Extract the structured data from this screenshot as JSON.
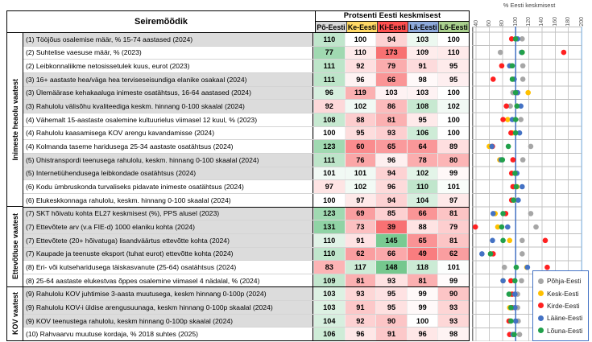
{
  "table": {
    "header": {
      "indicator_col": "Seiremõõdik",
      "values_title": "Protsenti Eesti keskmisest",
      "regions": [
        {
          "label": "Põ-Eesti",
          "bg": "#D9D9D9"
        },
        {
          "label": "Ke-Eesti",
          "bg": "#FFD966"
        },
        {
          "label": "Ki-Eesti",
          "bg": "#FF5050"
        },
        {
          "label": "Lä-Eesti",
          "bg": "#8EAADB"
        },
        {
          "label": "Lõ-Eesti",
          "bg": "#A9D08E"
        }
      ]
    },
    "groups": [
      {
        "label": "Inimeste heaolu vaatest",
        "row_count": 13
      },
      {
        "label": "Ettevõtluse vaatest",
        "row_count": 6
      },
      {
        "label": "KOV vaatest",
        "row_count": 4
      }
    ],
    "rows": [
      {
        "label": "(1) Tööjõus osalemise määr, % 15-74 aastased (2024)",
        "values": [
          110,
          100,
          94,
          103,
          100
        ],
        "shaded": true,
        "lower_is_better": false
      },
      {
        "label": "(2) Suhtelise vaesuse määr, % (2023)",
        "values": [
          77,
          110,
          173,
          109,
          110
        ],
        "shaded": false,
        "lower_is_better": true
      },
      {
        "label": "(2) Leibkonnaliikme netosissetulek kuus, eurot (2023)",
        "values": [
          111,
          92,
          79,
          91,
          95
        ],
        "shaded": false,
        "lower_is_better": false
      },
      {
        "label": "(3) 16+ aastaste hea/väga hea terviseseisundiga elanike osakaal (2024)",
        "values": [
          111,
          96,
          66,
          98,
          95
        ],
        "shaded": true,
        "lower_is_better": false
      },
      {
        "label": "(3) Ülemäärase kehakaaluga inimeste osatähtsus, 16-64 aastased (2024)",
        "values": [
          96,
          119,
          103,
          103,
          100
        ],
        "shaded": true,
        "lower_is_better": true
      },
      {
        "label": "(3) Rahulolu välisõhu kvaliteediga keskm. hinnang 0-100 skaalal (2024)",
        "values": [
          92,
          102,
          86,
          108,
          102
        ],
        "shaded": true,
        "lower_is_better": false
      },
      {
        "label": "(4) Vähemalt 15-aastaste osalemine kultuurielus viimasel 12 kuul, % (2023)",
        "values": [
          108,
          88,
          81,
          95,
          100
        ],
        "shaded": false,
        "lower_is_better": false
      },
      {
        "label": "(4) Rahulolu kaasamisega KOV arengu kavandamisse (2024)",
        "values": [
          100,
          95,
          93,
          106,
          100
        ],
        "shaded": false,
        "lower_is_better": false
      },
      {
        "label": "(4) Kolmanda taseme haridusega 25-34 aastaste osatähtsus (2024)",
        "values": [
          123,
          60,
          65,
          64,
          89
        ],
        "shaded": false,
        "lower_is_better": false
      },
      {
        "label": "(5) Ühistranspordi teenusega rahulolu, keskm. hinnang 0-100 skaalal (2024)",
        "values": [
          111,
          76,
          96,
          78,
          80
        ],
        "shaded": true,
        "lower_is_better": false
      },
      {
        "label": "(5) Internetiühendusega leibkondade osatähtsus (2024)",
        "values": [
          101,
          101,
          94,
          102,
          99
        ],
        "shaded": true,
        "lower_is_better": false
      },
      {
        "label": "(6) Kodu ümbruskonda turvaliseks pidavate inimeste osatähtsus (2024)",
        "values": [
          97,
          102,
          96,
          110,
          101
        ],
        "shaded": false,
        "lower_is_better": false
      },
      {
        "label": "(6) Elukeskkonnaga rahulolu, keskm. hinnang 0-100 skaalal (2024)",
        "values": [
          100,
          97,
          94,
          104,
          97
        ],
        "shaded": false,
        "lower_is_better": false
      },
      {
        "label": "(7) SKT hõivatu kohta EL27 keskmisest (%), PPS alusel (2023)",
        "values": [
          123,
          69,
          85,
          66,
          81
        ],
        "shaded": true,
        "lower_is_better": false
      },
      {
        "label": "(7) Ettevõtete arv (v.a FIE-d) 1000 elaniku kohta (2024)",
        "values": [
          131,
          73,
          39,
          88,
          79
        ],
        "shaded": true,
        "lower_is_better": false
      },
      {
        "label": "(7) Ettevõtete (20+ hõivatuga) lisandväärtus ettevõtte kohta (2024)",
        "values": [
          110,
          91,
          145,
          65,
          81
        ],
        "shaded": true,
        "lower_is_better": false
      },
      {
        "label": "(7) Kaupade ja teenuste eksport (tuhat eurot) ettevõtte kohta (2024)",
        "values": [
          110,
          62,
          66,
          49,
          62
        ],
        "shaded": true,
        "lower_is_better": false
      },
      {
        "label": "(8) Eri- või kutseharidusega täiskasvanute (25-64) osatähtsus (2024)",
        "values": [
          83,
          117,
          148,
          118,
          101
        ],
        "shaded": false,
        "lower_is_better": false
      },
      {
        "label": "(8) 25-64 aastaste elukestvas õppes osalemine viimasel 4 nädalal, % (2024)",
        "values": [
          109,
          81,
          93,
          81,
          99
        ],
        "shaded": false,
        "lower_is_better": false
      },
      {
        "label": "(9) Rahulolu KOV juhtimise 3-aasta muutusega, keskm hinnang 0-100p (2024)",
        "values": [
          103,
          93,
          95,
          99,
          90
        ],
        "shaded": true,
        "lower_is_better": false
      },
      {
        "label": "(9) Rahulolu KOV-i üldise arengusuunaga, keskm hinnang 0-100p skaalal (2024)",
        "values": [
          103,
          91,
          95,
          99,
          93
        ],
        "shaded": true,
        "lower_is_better": false
      },
      {
        "label": "(9) KOV teenustega rahulolu, keskm hinnang 0-100p skaalal (2024)",
        "values": [
          104,
          92,
          90,
          100,
          93
        ],
        "shaded": true,
        "lower_is_better": false
      },
      {
        "label": "(10) Rahvaarvu muutuse kordaja, % 2018 suhtes (2025)",
        "values": [
          106,
          96,
          91,
          96,
          98
        ],
        "shaded": false,
        "lower_is_better": false
      }
    ]
  },
  "chart_data": {
    "type": "scatter",
    "title": "% Eesti keskmisest",
    "x_ticks": [
      40,
      60,
      80,
      100,
      120,
      140,
      160,
      180,
      200
    ],
    "x_range": [
      40,
      200
    ],
    "reference_line": 100,
    "legend_position": "bottom-right",
    "grid": true,
    "categories": [
      "(1) Tööjõus osalemise määr, % 15-74 aastased (2024)",
      "(2) Suhtelise vaesuse määr, % (2023)",
      "(2) Leibkonnaliikme netosissetulek kuus, eurot (2023)",
      "(3) 16+ aastaste hea/väga hea terviseseisundiga elanike osakaal (2024)",
      "(3) Ülemäärase kehakaaluga inimeste osatähtsus, 16-64 aastased (2024)",
      "(3) Rahulolu välisõhu kvaliteediga keskm. hinnang 0-100 skaalal (2024)",
      "(4) Vähemalt 15-aastaste osalemine kultuurielus viimasel 12 kuul, % (2023)",
      "(4) Rahulolu kaasamisega KOV arengu kavandamisse (2024)",
      "(4) Kolmanda taseme haridusega 25-34 aastaste osatähtsus (2024)",
      "(5) Ühistranspordi teenusega rahulolu, keskm. hinnang 0-100 skaalal (2024)",
      "(5) Internetiühendusega leibkondade osatähtsus (2024)",
      "(6) Kodu ümbruskonda turvaliseks pidavate inimeste osatähtsus (2024)",
      "(6) Elukeskkonnaga rahulolu, keskm. hinnang 0-100 skaalal (2024)",
      "(7) SKT hõivatu kohta EL27 keskmisest (%), PPS alusel (2023)",
      "(7) Ettevõtete arv (v.a FIE-d) 1000 elaniku kohta (2024)",
      "(7) Ettevõtete (20+ hõivatuga) lisandväärtus ettevõtte kohta (2024)",
      "(7) Kaupade ja teenuste eksport (tuhat eurot) ettevõtte kohta (2024)",
      "(8) Eri- või kutseharidusega täiskasvanute (25-64) osatähtsus (2024)",
      "(8) 25-64 aastaste elukestvas õppes osalemine viimasel 4 nädalal, % (2024)",
      "(9) Rahulolu KOV juhtimise 3-aasta muutusega, keskm hinnang 0-100p (2024)",
      "(9) Rahulolu KOV-i üldise arengusuunaga, keskm hinnang 0-100p skaalal (2024)",
      "(9) KOV teenustega rahulolu, keskm hinnang 0-100p skaalal (2024)",
      "(10) Rahvaarvu muutuse kordaja, % 2018 suhtes (2025)"
    ],
    "series": [
      {
        "name": "Põhja-Eesti",
        "color": "#A6A6A6",
        "values": [
          110,
          77,
          111,
          111,
          96,
          92,
          108,
          100,
          123,
          111,
          101,
          97,
          100,
          123,
          131,
          110,
          110,
          83,
          109,
          103,
          103,
          104,
          106
        ]
      },
      {
        "name": "Kesk-Eesti",
        "color": "#FFC000",
        "values": [
          100,
          110,
          92,
          96,
          119,
          102,
          88,
          95,
          60,
          76,
          101,
          102,
          97,
          69,
          73,
          91,
          62,
          117,
          81,
          93,
          91,
          92,
          96
        ]
      },
      {
        "name": "Kirde-Eesti",
        "color": "#FF2020",
        "values": [
          94,
          173,
          79,
          66,
          103,
          86,
          81,
          93,
          65,
          96,
          94,
          96,
          94,
          85,
          39,
          145,
          66,
          148,
          93,
          95,
          95,
          90,
          91
        ]
      },
      {
        "name": "Lääne-Eesti",
        "color": "#4472C4",
        "values": [
          103,
          109,
          91,
          98,
          103,
          108,
          95,
          106,
          64,
          78,
          102,
          110,
          104,
          66,
          88,
          65,
          49,
          118,
          81,
          99,
          99,
          100,
          96
        ]
      },
      {
        "name": "Lõuna-Eesti",
        "color": "#21A04B",
        "values": [
          100,
          110,
          95,
          95,
          100,
          102,
          100,
          100,
          89,
          80,
          99,
          101,
          97,
          81,
          79,
          81,
          62,
          101,
          99,
          90,
          93,
          93,
          98
        ]
      }
    ]
  },
  "colors": {
    "reference_line": "#4472C4",
    "heat_positive": "#5BBE79",
    "heat_negative": "#F8696B",
    "grid_vertical": "#C9C9C9",
    "grid_horizontal": "#BFBFBF",
    "plot_right_border": "#9DC3E6",
    "plot_left_border": "#808080",
    "shaded_row_bg": "#DCDCDC",
    "legend_border": "#4472C4"
  }
}
